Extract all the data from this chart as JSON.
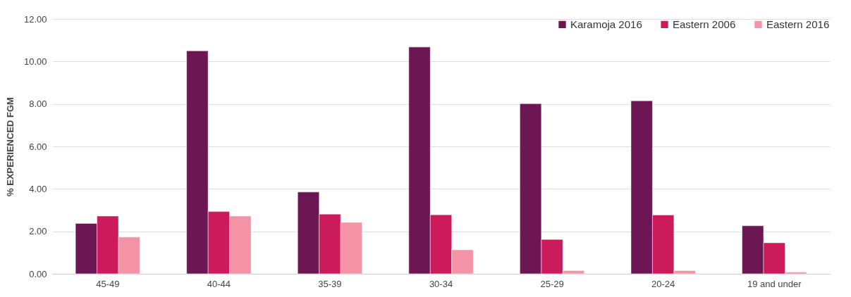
{
  "chart_data": {
    "type": "bar",
    "ylabel": "% EXPERIENCED FGM",
    "categories": [
      "45-49",
      "40-44",
      "35-39",
      "30-34",
      "25-29",
      "20-24",
      "19 and under"
    ],
    "series": [
      {
        "name": "Karamoja 2016",
        "color": "#6d1654",
        "values": [
          2.37,
          10.5,
          3.85,
          10.68,
          8.01,
          8.15,
          2.26
        ]
      },
      {
        "name": "Eastern 2006",
        "color": "#cc1b5a",
        "values": [
          2.72,
          2.93,
          2.81,
          2.78,
          1.62,
          2.77,
          1.46
        ]
      },
      {
        "name": "Eastern 2016",
        "color": "#f493a5",
        "values": [
          1.73,
          2.72,
          2.42,
          1.13,
          0.15,
          0.15,
          0.08
        ]
      }
    ],
    "ylim": [
      0,
      12
    ],
    "yticks": [
      {
        "value": 0,
        "label": "0.00"
      },
      {
        "value": 2,
        "label": "2.00"
      },
      {
        "value": 4,
        "label": "4.00"
      },
      {
        "value": 6,
        "label": "6.00"
      },
      {
        "value": 8,
        "label": "8.00"
      },
      {
        "value": 10,
        "label": "10.00"
      },
      {
        "value": 12,
        "label": "12.00"
      }
    ],
    "grid": "y",
    "legend": "top right"
  }
}
